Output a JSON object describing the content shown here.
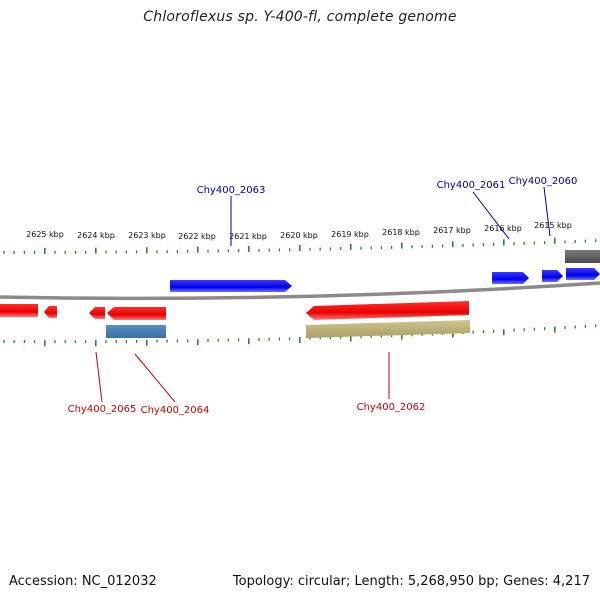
{
  "title": "Chloroflexus sp. Y-400-fl, complete genome",
  "footer": {
    "accession": "Accession: NC_012032",
    "stats": "Topology: circular; Length: 5,268,950 bp; Genes: 4,217"
  },
  "colors": {
    "backbone": "#8a8a8a",
    "ticks": "#2a8a2a",
    "forward_gene": "#0000ee",
    "reverse_gene": "#ee0000",
    "forward_label": "#0000aa",
    "reverse_label": "#cc0000",
    "steelblue_feature": "#4a7faf",
    "olive_feature": "#bcb27a",
    "grey_feature": "#666666"
  },
  "scale_labels": [
    "2625 kbp",
    "2624 kbp",
    "2623 kbp",
    "2622 kbp",
    "2621 kbp",
    "2620 kbp",
    "2619 kbp",
    "2618 kbp",
    "2617 kbp",
    "2616 kbp",
    "2615 kbp"
  ],
  "gene_labels": {
    "chy2060": "Chy400_2060",
    "chy2061": "Chy400_2061",
    "chy2062": "Chy400_2062",
    "chy2063": "Chy400_2063",
    "chy2064": "Chy400_2064",
    "chy2065": "Chy400_2065"
  }
}
